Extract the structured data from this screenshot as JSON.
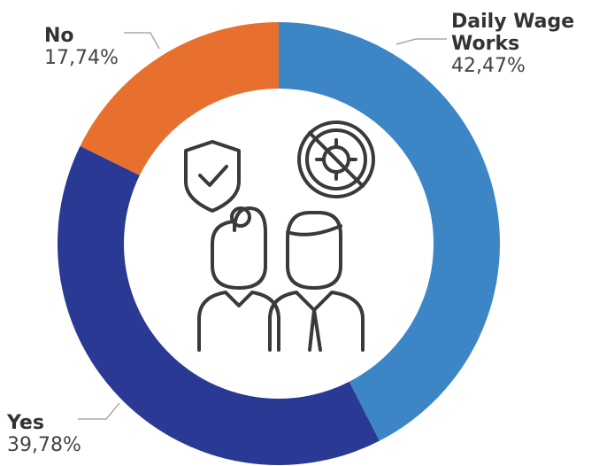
{
  "chart_data": {
    "type": "donut",
    "categories": [
      "Daily Wage Works",
      "Yes",
      "No"
    ],
    "values": [
      42.47,
      39.78,
      17.74
    ],
    "value_labels": [
      "42,47%",
      "39,78%",
      "17,74%"
    ],
    "colors": [
      "#3d86c6",
      "#2a3a94",
      "#e8702f"
    ]
  }
}
